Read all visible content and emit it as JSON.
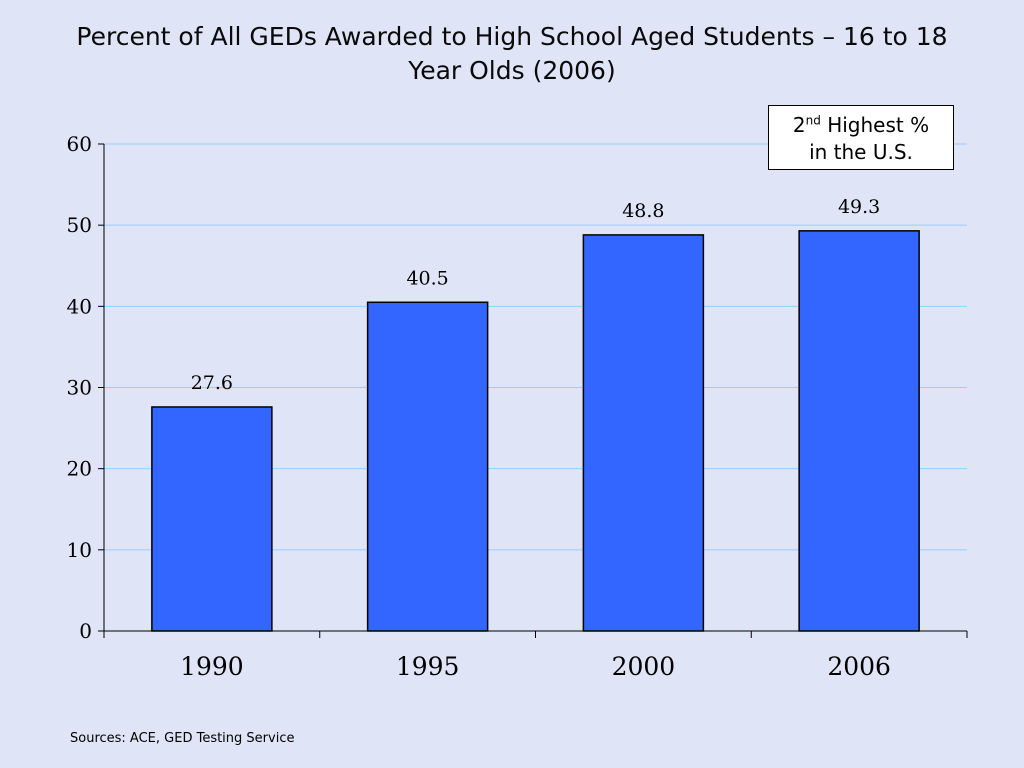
{
  "title": "Percent of All GEDs Awarded to High School Aged Students – 16 to 18 Year Olds (2006)",
  "callout": {
    "rank": "2",
    "rank_suffix": "nd",
    "text_line1": "Highest %",
    "text_line2": "in the U.S."
  },
  "source": "Sources: ACE, GED Testing Service",
  "colors": {
    "background": "#dfe5f6",
    "bar": "#3366ff",
    "gridline": "#99ccff"
  },
  "chart_data": {
    "type": "bar",
    "categories": [
      "1990",
      "1995",
      "2000",
      "2006"
    ],
    "values": [
      27.6,
      40.5,
      48.8,
      49.3
    ],
    "data_labels": [
      "27.6",
      "40.5",
      "48.8",
      "49.3"
    ],
    "ylim": [
      0,
      60
    ],
    "yticks": [
      0,
      10,
      20,
      30,
      40,
      50,
      60
    ],
    "grid": true,
    "legend": "none",
    "xlabel": "",
    "ylabel": ""
  }
}
